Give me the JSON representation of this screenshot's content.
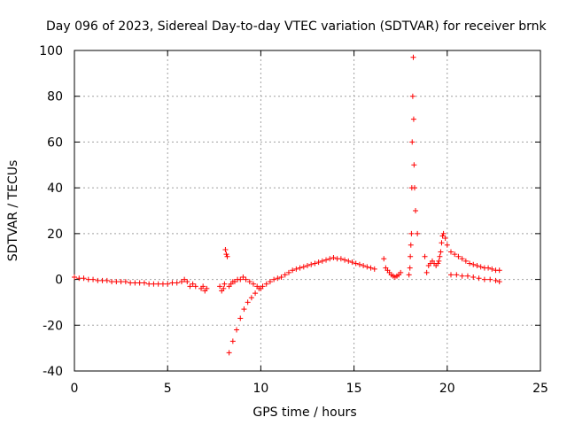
{
  "chart_data": {
    "type": "scatter",
    "title": "Day 096 of 2023, Sidereal Day-to-day VTEC variation (SDTVAR) for receiver brnk",
    "xlabel": "GPS time / hours",
    "ylabel": "SDTVAR / TECUs",
    "xlim": [
      0,
      25
    ],
    "ylim": [
      -40,
      100
    ],
    "xticks": [
      0,
      5,
      10,
      15,
      20,
      25
    ],
    "yticks": [
      -40,
      -20,
      0,
      20,
      40,
      60,
      80,
      100
    ],
    "grid": true,
    "marker": "+",
    "color": "#ff0000",
    "series": [
      {
        "name": "SDTVAR",
        "x": [
          0,
          0.25,
          0.5,
          0.75,
          1,
          1.25,
          1.5,
          1.75,
          2,
          2.25,
          2.5,
          2.75,
          3,
          3.25,
          3.5,
          3.75,
          4,
          4.25,
          4.5,
          4.75,
          5,
          5.25,
          5.5,
          5.75,
          5.9,
          6.05,
          6.2,
          6.35,
          6.5,
          6.8,
          6.9,
          7.0,
          7.1,
          7.8,
          7.9,
          8.0,
          8.05,
          8.1,
          8.15,
          8.2,
          8.3,
          8.4,
          8.5,
          8.6,
          8.75,
          8.9,
          9.05,
          9.2,
          9.4,
          9.6,
          9.8,
          10.0,
          8.3,
          8.5,
          8.7,
          8.9,
          9.1,
          9.3,
          9.5,
          9.7,
          9.9,
          10.1,
          10.3,
          10.5,
          10.7,
          10.9,
          11.1,
          11.3,
          11.5,
          11.7,
          11.9,
          12.1,
          12.3,
          12.5,
          12.7,
          12.9,
          13.1,
          13.3,
          13.5,
          13.7,
          13.9,
          14.1,
          14.3,
          14.5,
          14.7,
          14.9,
          15.1,
          15.3,
          15.5,
          15.7,
          15.9,
          16.1,
          16.6,
          16.7,
          16.8,
          16.9,
          17.0,
          17.1,
          17.2,
          17.3,
          17.4,
          17.5,
          17.95,
          18.0,
          18.02,
          18.05,
          18.08,
          18.1,
          18.12,
          18.15,
          18.18,
          18.2,
          18.22,
          18.25,
          18.3,
          18.4,
          18.8,
          18.9,
          19.0,
          19.1,
          19.2,
          19.3,
          19.4,
          19.5,
          19.55,
          19.6,
          19.65,
          19.7,
          19.75,
          19.8,
          19.9,
          20.0,
          20.2,
          20.4,
          20.6,
          20.8,
          21.0,
          21.2,
          21.4,
          21.6,
          21.8,
          22.0,
          22.2,
          22.4,
          22.6,
          22.8,
          20.2,
          20.5,
          20.8,
          21.1,
          21.4,
          21.7,
          22.0,
          22.3,
          22.6,
          22.8
        ],
        "y": [
          1,
          0.5,
          0.5,
          0,
          0,
          -0.5,
          -0.5,
          -0.5,
          -1,
          -1,
          -1,
          -1,
          -1.5,
          -1.5,
          -1.5,
          -1.5,
          -2,
          -2,
          -2,
          -2,
          -2,
          -1.5,
          -1.5,
          -1,
          0,
          -1,
          -3,
          -2,
          -3,
          -4,
          -3,
          -5,
          -4,
          -3,
          -5,
          -4,
          -2,
          13,
          11,
          10,
          -3,
          -2,
          -1,
          -1,
          0,
          0,
          1,
          0,
          -1,
          -2,
          -3,
          -4,
          -32,
          -27,
          -22,
          -17,
          -13,
          -10,
          -8,
          -6,
          -4,
          -3,
          -2,
          -1,
          0,
          0.5,
          1,
          2,
          3,
          4,
          4.5,
          5,
          5.5,
          6,
          6.5,
          7,
          7.5,
          8,
          8.5,
          9,
          9.5,
          9,
          9,
          8.5,
          8,
          7.5,
          7,
          6.5,
          6,
          5.5,
          5,
          4.5,
          9,
          5,
          4,
          3,
          2,
          1.5,
          1,
          1.5,
          2,
          3,
          2,
          5,
          10,
          15,
          20,
          40,
          60,
          80,
          97,
          70,
          50,
          40,
          30,
          20,
          10,
          3,
          6,
          7,
          8,
          7,
          6,
          7,
          8,
          10,
          12,
          16,
          19,
          20,
          18,
          15,
          12,
          11,
          10,
          9,
          8,
          7,
          6.5,
          6,
          5.5,
          5,
          5,
          4.5,
          4,
          4,
          2,
          2,
          1.5,
          1.5,
          1,
          0.5,
          0,
          0,
          -0.5,
          -1
        ]
      }
    ]
  }
}
